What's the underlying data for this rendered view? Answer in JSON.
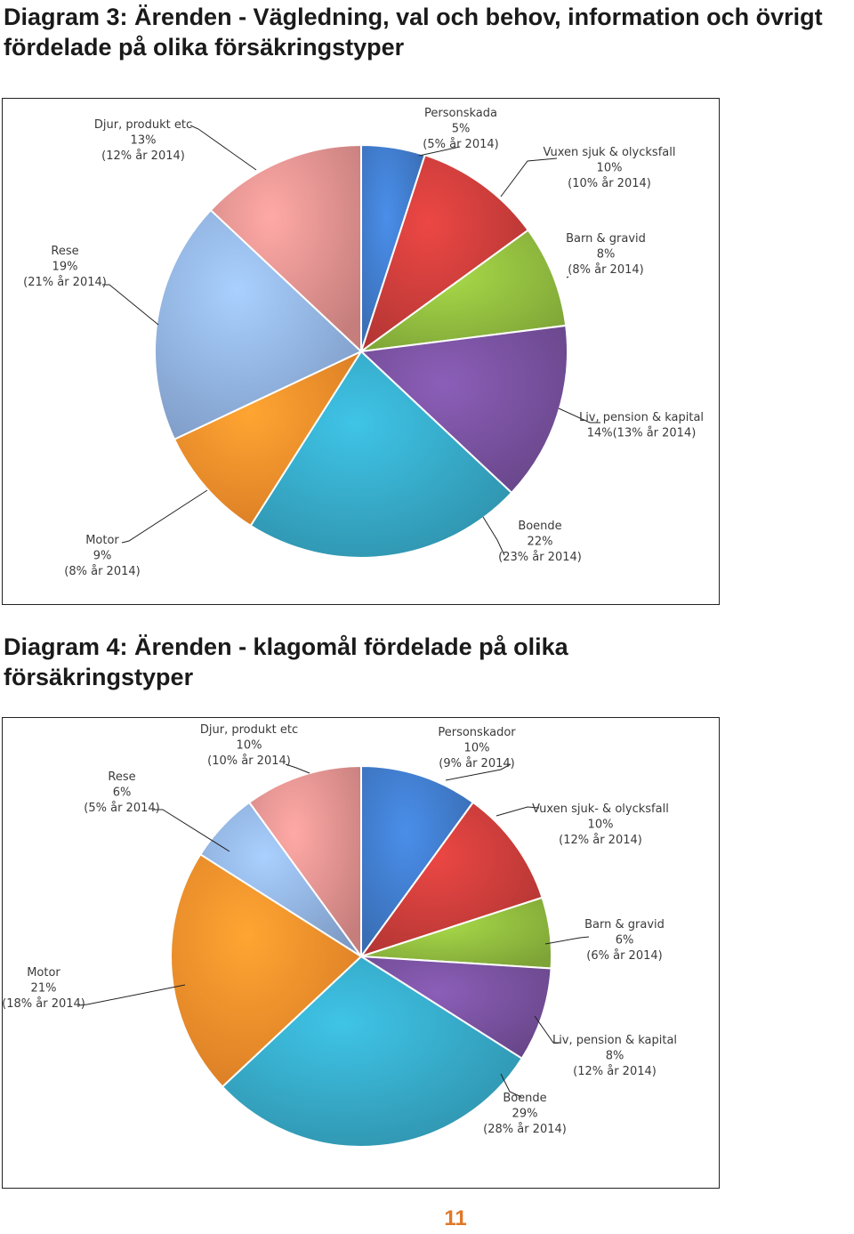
{
  "page_number": "11",
  "charts": [
    {
      "title_lines": [
        "Diagram 3: Ärenden - Vägledning, val och behov, information och övrigt",
        "fördelade på olika försäkringstyper"
      ],
      "labels": [
        {
          "lines": [
            "Personskada",
            "5%",
            "(5% år 2014)"
          ]
        },
        {
          "lines": [
            "Vuxen sjuk & olycksfall",
            "10%",
            "(10% år 2014)"
          ]
        },
        {
          "lines": [
            "Barn & gravid",
            "8%",
            "(8% år 2014)"
          ]
        },
        {
          "lines": [
            "Liv, pension & kapital",
            "14%(13% år 2014)"
          ]
        },
        {
          "lines": [
            "Boende",
            "22%",
            "(23% år 2014)"
          ]
        },
        {
          "lines": [
            "Motor",
            "9%",
            "(8% år 2014)"
          ]
        },
        {
          "lines": [
            "Rese",
            "19%",
            "(21% år 2014)"
          ]
        },
        {
          "lines": [
            "Djur, produkt etc",
            "13%",
            "(12% år 2014)"
          ]
        }
      ]
    },
    {
      "title_lines": [
        "Diagram 4: Ärenden - klagomål fördelade på olika",
        "försäkringstyper"
      ],
      "labels": [
        {
          "lines": [
            "Personskador",
            "10%",
            "(9% år 2014)"
          ]
        },
        {
          "lines": [
            "Vuxen sjuk- & olycksfall",
            "10%",
            "(12% år 2014)"
          ]
        },
        {
          "lines": [
            "Barn & gravid",
            "6%",
            "(6% år 2014)"
          ]
        },
        {
          "lines": [
            "Liv, pension & kapital",
            "8%",
            "(12% år 2014)"
          ]
        },
        {
          "lines": [
            "Boende",
            "29%",
            "(28% år 2014)"
          ]
        },
        {
          "lines": [
            "Motor",
            "21%",
            "(18% år 2014)"
          ]
        },
        {
          "lines": [
            "Rese",
            "6%",
            "(5% år 2014)"
          ]
        },
        {
          "lines": [
            "Djur, produkt etc",
            "10%",
            "(10% år 2014)"
          ]
        }
      ]
    }
  ],
  "chart_data": [
    {
      "type": "pie",
      "title": "Diagram 3: Ärenden - Vägledning, val och behov, information och övrigt fördelade på olika försäkringstyper",
      "categories": [
        "Personskada",
        "Vuxen sjuk & olycksfall",
        "Barn & gravid",
        "Liv, pension & kapital",
        "Boende",
        "Motor",
        "Rese",
        "Djur, produkt etc"
      ],
      "values": [
        5,
        10,
        8,
        14,
        22,
        9,
        19,
        13
      ],
      "values_2014": [
        5,
        10,
        8,
        13,
        23,
        8,
        21,
        12
      ],
      "colors": [
        "#3f78c6",
        "#c83c3a",
        "#8fba3e",
        "#76509c",
        "#35a6c4",
        "#f58c2a",
        "#8fb0e0",
        "#e08f8d"
      ]
    },
    {
      "type": "pie",
      "title": "Diagram 4: Ärenden - klagomål fördelade på olika försäkringstyper",
      "categories": [
        "Personskador",
        "Vuxen sjuk- & olycksfall",
        "Barn & gravid",
        "Liv, pension & kapital",
        "Boende",
        "Motor",
        "Rese",
        "Djur, produkt etc"
      ],
      "values": [
        10,
        10,
        6,
        8,
        29,
        21,
        6,
        10
      ],
      "values_2014": [
        9,
        12,
        6,
        12,
        28,
        18,
        5,
        10
      ],
      "colors": [
        "#3f78c6",
        "#c83c3a",
        "#8fba3e",
        "#76509c",
        "#35a6c4",
        "#f58c2a",
        "#8fb0e0",
        "#e08f8d"
      ]
    }
  ]
}
